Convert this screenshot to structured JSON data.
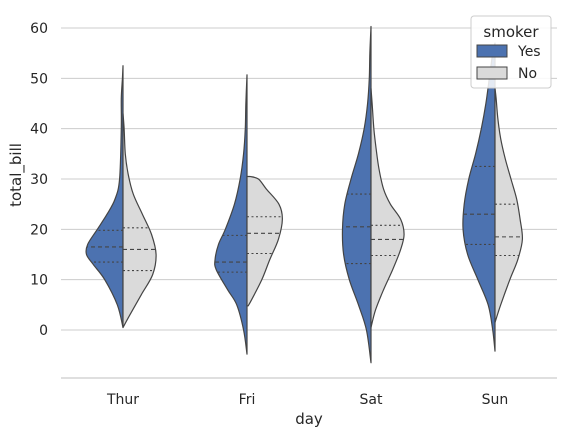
{
  "chart_data": {
    "type": "violin",
    "xlabel": "day",
    "ylabel": "total_bill",
    "ylim": [
      -9.5,
      63
    ],
    "yticks": [
      0,
      10,
      20,
      30,
      40,
      50,
      60
    ],
    "grid": "horizontal",
    "legend_position": "top-right",
    "legend_title": "smoker",
    "categories": [
      "Thur",
      "Fri",
      "Sat",
      "Sun"
    ],
    "series": [
      {
        "name": "Yes",
        "color": "#4c72b0",
        "violins": [
          {
            "min": 0.5,
            "max": 52.5,
            "q1": 13.5,
            "median": 16.5,
            "q3": 19.8,
            "profile": [
              [
                0.5,
                0.0
              ],
              [
                5,
                0.1
              ],
              [
                10,
                0.32
              ],
              [
                13,
                0.52
              ],
              [
                15,
                0.64
              ],
              [
                17,
                0.62
              ],
              [
                20,
                0.45
              ],
              [
                23,
                0.28
              ],
              [
                26,
                0.14
              ],
              [
                30,
                0.06
              ],
              [
                40,
                0.03
              ],
              [
                46,
                0.03
              ],
              [
                50,
                0.01
              ],
              [
                52.5,
                0.0
              ]
            ]
          },
          {
            "min": -4.8,
            "max": 50.7,
            "q1": 11.5,
            "median": 13.5,
            "q3": 18.8,
            "profile": [
              [
                -4.8,
                0.0
              ],
              [
                0,
                0.06
              ],
              [
                5,
                0.18
              ],
              [
                8,
                0.34
              ],
              [
                12,
                0.54
              ],
              [
                14,
                0.56
              ],
              [
                17,
                0.5
              ],
              [
                20,
                0.38
              ],
              [
                25,
                0.22
              ],
              [
                30,
                0.12
              ],
              [
                35,
                0.06
              ],
              [
                40,
                0.03
              ],
              [
                45,
                0.02
              ],
              [
                50.7,
                0.0
              ]
            ]
          },
          {
            "min": -6.5,
            "max": 60.3,
            "q1": 13.2,
            "median": 20.5,
            "q3": 27.0,
            "profile": [
              [
                -6.5,
                0.0
              ],
              [
                0,
                0.08
              ],
              [
                5,
                0.22
              ],
              [
                10,
                0.38
              ],
              [
                15,
                0.48
              ],
              [
                20,
                0.5
              ],
              [
                25,
                0.46
              ],
              [
                30,
                0.35
              ],
              [
                35,
                0.22
              ],
              [
                40,
                0.12
              ],
              [
                45,
                0.06
              ],
              [
                50,
                0.03
              ],
              [
                55,
                0.02
              ],
              [
                60.3,
                0.0
              ]
            ]
          },
          {
            "min": -4.2,
            "max": 57.0,
            "q1": 17.0,
            "median": 23.0,
            "q3": 32.5,
            "profile": [
              [
                -4.2,
                0.0
              ],
              [
                0,
                0.04
              ],
              [
                5,
                0.12
              ],
              [
                10,
                0.3
              ],
              [
                15,
                0.48
              ],
              [
                20,
                0.56
              ],
              [
                25,
                0.54
              ],
              [
                30,
                0.46
              ],
              [
                35,
                0.34
              ],
              [
                40,
                0.24
              ],
              [
                45,
                0.16
              ],
              [
                50,
                0.1
              ],
              [
                55,
                0.04
              ],
              [
                57,
                0.0
              ]
            ]
          }
        ]
      },
      {
        "name": "No",
        "color": "#dadada",
        "violins": [
          {
            "min": 0.5,
            "max": 43.0,
            "q1": 11.8,
            "median": 16.0,
            "q3": 20.3,
            "profile": [
              [
                0.5,
                0.0
              ],
              [
                3,
                0.12
              ],
              [
                7,
                0.32
              ],
              [
                11,
                0.52
              ],
              [
                15,
                0.58
              ],
              [
                19,
                0.5
              ],
              [
                23,
                0.34
              ],
              [
                27,
                0.18
              ],
              [
                31,
                0.09
              ],
              [
                35,
                0.04
              ],
              [
                40,
                0.02
              ],
              [
                43,
                0.0
              ]
            ]
          },
          {
            "min": 4.8,
            "max": 30.5,
            "q1": 15.2,
            "median": 19.2,
            "q3": 22.5,
            "profile": [
              [
                4.8,
                0.02
              ],
              [
                6,
                0.08
              ],
              [
                10,
                0.26
              ],
              [
                14,
                0.4
              ],
              [
                18,
                0.55
              ],
              [
                22,
                0.62
              ],
              [
                25,
                0.56
              ],
              [
                28,
                0.34
              ],
              [
                30,
                0.2
              ],
              [
                30.5,
                0.05
              ]
            ]
          },
          {
            "min": 0.5,
            "max": 48.0,
            "q1": 14.8,
            "median": 18.0,
            "q3": 20.8,
            "profile": [
              [
                0.5,
                0.0
              ],
              [
                4,
                0.08
              ],
              [
                8,
                0.22
              ],
              [
                12,
                0.38
              ],
              [
                16,
                0.52
              ],
              [
                19,
                0.58
              ],
              [
                22,
                0.52
              ],
              [
                25,
                0.34
              ],
              [
                28,
                0.22
              ],
              [
                32,
                0.14
              ],
              [
                36,
                0.09
              ],
              [
                40,
                0.05
              ],
              [
                45,
                0.02
              ],
              [
                48,
                0.0
              ]
            ]
          },
          {
            "min": 1.5,
            "max": 48.0,
            "q1": 14.8,
            "median": 18.5,
            "q3": 25.0,
            "profile": [
              [
                1.5,
                0.0
              ],
              [
                5,
                0.1
              ],
              [
                10,
                0.26
              ],
              [
                14,
                0.4
              ],
              [
                18,
                0.48
              ],
              [
                22,
                0.44
              ],
              [
                26,
                0.38
              ],
              [
                30,
                0.28
              ],
              [
                34,
                0.18
              ],
              [
                38,
                0.1
              ],
              [
                42,
                0.05
              ],
              [
                46,
                0.02
              ],
              [
                48,
                0.0
              ]
            ]
          }
        ]
      }
    ]
  }
}
